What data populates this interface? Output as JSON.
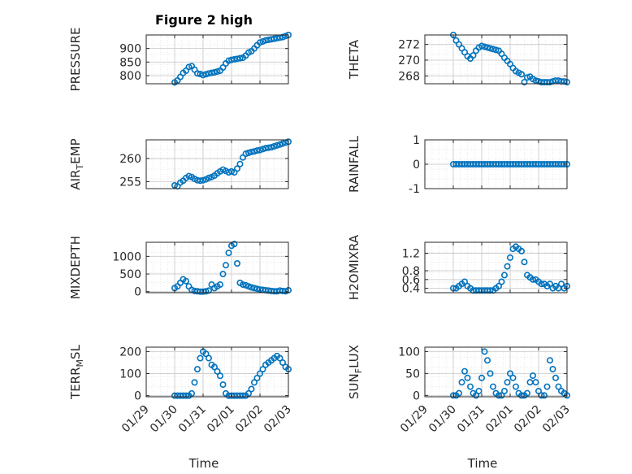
{
  "figure": {
    "title": "Figure 2 high",
    "xlabel": "Time"
  },
  "colors": {
    "marker": "#0072bd",
    "axis": "#262626",
    "grid": "#d0d0d0",
    "background": "#ffffff"
  },
  "chart_data": [
    {
      "type": "scatter",
      "id": "pressure",
      "title": "Figure 2 high",
      "ylabel": "PRESSURE",
      "xlim": [
        0,
        5
      ],
      "ylim": [
        770,
        950
      ],
      "yticks": [
        800,
        850,
        900
      ],
      "xticklabels": [],
      "xlabel": "",
      "x": [
        1.0,
        1.1,
        1.2,
        1.3,
        1.4,
        1.5,
        1.6,
        1.7,
        1.8,
        1.9,
        2.0,
        2.1,
        2.2,
        2.3,
        2.4,
        2.5,
        2.6,
        2.7,
        2.8,
        2.9,
        3.0,
        3.1,
        3.2,
        3.3,
        3.4,
        3.5,
        3.6,
        3.7,
        3.8,
        3.9,
        4.0,
        4.1,
        4.2,
        4.3,
        4.4,
        4.5,
        4.6,
        4.7,
        4.8,
        4.9,
        5.0
      ],
      "y": [
        775,
        782,
        795,
        810,
        818,
        832,
        835,
        822,
        808,
        806,
        802,
        805,
        808,
        810,
        812,
        815,
        818,
        830,
        845,
        855,
        858,
        860,
        862,
        864,
        866,
        874,
        885,
        890,
        900,
        912,
        922,
        926,
        930,
        932,
        934,
        936,
        938,
        940,
        942,
        946,
        950
      ]
    },
    {
      "type": "scatter",
      "id": "theta",
      "ylabel": "THETA",
      "xlim": [
        0,
        5
      ],
      "ylim": [
        267,
        273.2
      ],
      "yticks": [
        268,
        270,
        272
      ],
      "xticklabels": [],
      "xlabel": "",
      "x": [
        1.0,
        1.1,
        1.2,
        1.3,
        1.4,
        1.5,
        1.6,
        1.7,
        1.8,
        1.9,
        2.0,
        2.1,
        2.2,
        2.3,
        2.4,
        2.5,
        2.6,
        2.7,
        2.8,
        2.9,
        3.0,
        3.1,
        3.2,
        3.3,
        3.4,
        3.5,
        3.6,
        3.7,
        3.8,
        3.9,
        4.0,
        4.1,
        4.2,
        4.3,
        4.4,
        4.5,
        4.6,
        4.7,
        4.8,
        4.9,
        5.0
      ],
      "y": [
        273.2,
        272.5,
        272.0,
        271.5,
        271.0,
        270.5,
        270.2,
        270.6,
        271.2,
        271.6,
        271.8,
        271.7,
        271.6,
        271.5,
        271.4,
        271.3,
        271.2,
        270.8,
        270.3,
        269.9,
        269.5,
        269.0,
        268.6,
        268.4,
        268.2,
        267.2,
        267.8,
        267.9,
        267.6,
        267.4,
        267.3,
        267.2,
        267.2,
        267.2,
        267.2,
        267.3,
        267.4,
        267.4,
        267.3,
        267.3,
        267.2
      ]
    },
    {
      "type": "scatter",
      "id": "air_temp",
      "ylabel": "AIR_TEMP",
      "xlim": [
        0,
        5
      ],
      "ylim": [
        253.5,
        264
      ],
      "yticks": [
        255,
        260
      ],
      "xticklabels": [],
      "xlabel": "",
      "x": [
        1.0,
        1.1,
        1.2,
        1.3,
        1.4,
        1.5,
        1.6,
        1.7,
        1.8,
        1.9,
        2.0,
        2.1,
        2.2,
        2.3,
        2.4,
        2.5,
        2.6,
        2.7,
        2.8,
        2.9,
        3.0,
        3.1,
        3.2,
        3.3,
        3.4,
        3.5,
        3.6,
        3.7,
        3.8,
        3.9,
        4.0,
        4.1,
        4.2,
        4.3,
        4.4,
        4.5,
        4.6,
        4.7,
        4.8,
        4.9,
        5.0
      ],
      "y": [
        254.2,
        254.0,
        254.8,
        255.2,
        255.8,
        256.2,
        256.0,
        255.6,
        255.3,
        255.2,
        255.3,
        255.5,
        255.8,
        256.0,
        256.3,
        256.8,
        257.2,
        257.6,
        257.3,
        257.0,
        257.2,
        257.0,
        257.8,
        258.8,
        260.2,
        261.0,
        261.2,
        261.4,
        261.5,
        261.7,
        261.8,
        262.0,
        262.2,
        262.3,
        262.4,
        262.6,
        262.8,
        263.0,
        263.2,
        263.4,
        263.6
      ]
    },
    {
      "type": "scatter",
      "id": "rainfall",
      "ylabel": "RAINFALL",
      "xlim": [
        0,
        5
      ],
      "ylim": [
        -1,
        1
      ],
      "yticks": [
        -1,
        0,
        1
      ],
      "xticklabels": [],
      "xlabel": "",
      "x": [
        1.0,
        1.1,
        1.2,
        1.3,
        1.4,
        1.5,
        1.6,
        1.7,
        1.8,
        1.9,
        2.0,
        2.1,
        2.2,
        2.3,
        2.4,
        2.5,
        2.6,
        2.7,
        2.8,
        2.9,
        3.0,
        3.1,
        3.2,
        3.3,
        3.4,
        3.5,
        3.6,
        3.7,
        3.8,
        3.9,
        4.0,
        4.1,
        4.2,
        4.3,
        4.4,
        4.5,
        4.6,
        4.7,
        4.8,
        4.9,
        5.0
      ],
      "y": [
        0,
        0,
        0,
        0,
        0,
        0,
        0,
        0,
        0,
        0,
        0,
        0,
        0,
        0,
        0,
        0,
        0,
        0,
        0,
        0,
        0,
        0,
        0,
        0,
        0,
        0,
        0,
        0,
        0,
        0,
        0,
        0,
        0,
        0,
        0,
        0,
        0,
        0,
        0,
        0,
        0
      ]
    },
    {
      "type": "scatter",
      "id": "mixdepth",
      "ylabel": "MIXDEPTH",
      "xlim": [
        0,
        5
      ],
      "ylim": [
        -30,
        1400
      ],
      "yticks": [
        0,
        500,
        1000
      ],
      "xticklabels": [],
      "xlabel": "",
      "x": [
        1.0,
        1.1,
        1.2,
        1.3,
        1.4,
        1.5,
        1.6,
        1.7,
        1.8,
        1.9,
        2.0,
        2.1,
        2.2,
        2.3,
        2.4,
        2.5,
        2.6,
        2.7,
        2.8,
        2.9,
        3.0,
        3.1,
        3.2,
        3.3,
        3.4,
        3.5,
        3.6,
        3.7,
        3.8,
        3.9,
        4.0,
        4.1,
        4.2,
        4.3,
        4.4,
        4.5,
        4.6,
        4.7,
        4.8,
        4.9,
        5.0
      ],
      "y": [
        100,
        150,
        250,
        350,
        300,
        150,
        50,
        20,
        10,
        0,
        0,
        10,
        30,
        200,
        100,
        150,
        200,
        500,
        750,
        1100,
        1300,
        1350,
        800,
        250,
        200,
        180,
        150,
        120,
        100,
        80,
        60,
        50,
        40,
        30,
        20,
        10,
        10,
        30,
        20,
        10,
        40
      ]
    },
    {
      "type": "scatter",
      "id": "h2omixra",
      "ylabel": "H2OMIXRA",
      "xlim": [
        0,
        5
      ],
      "ylim": [
        0.3,
        1.45
      ],
      "yticks": [
        0.4,
        0.6,
        0.8,
        1.2
      ],
      "xticklabels": [],
      "xlabel": "",
      "x": [
        1.0,
        1.1,
        1.2,
        1.3,
        1.4,
        1.5,
        1.6,
        1.7,
        1.8,
        1.9,
        2.0,
        2.1,
        2.2,
        2.3,
        2.4,
        2.5,
        2.6,
        2.7,
        2.8,
        2.9,
        3.0,
        3.1,
        3.2,
        3.3,
        3.4,
        3.5,
        3.6,
        3.7,
        3.8,
        3.9,
        4.0,
        4.1,
        4.2,
        4.3,
        4.4,
        4.5,
        4.6,
        4.7,
        4.8,
        4.9,
        5.0
      ],
      "y": [
        0.4,
        0.4,
        0.45,
        0.5,
        0.55,
        0.45,
        0.4,
        0.35,
        0.35,
        0.35,
        0.35,
        0.35,
        0.35,
        0.35,
        0.35,
        0.4,
        0.45,
        0.55,
        0.7,
        0.9,
        1.1,
        1.3,
        1.35,
        1.3,
        1.25,
        1.0,
        0.7,
        0.65,
        0.6,
        0.6,
        0.55,
        0.5,
        0.5,
        0.45,
        0.5,
        0.4,
        0.45,
        0.4,
        0.5,
        0.4,
        0.45
      ]
    },
    {
      "type": "scatter",
      "id": "terr_msl",
      "ylabel": "TERR_MSL",
      "xlim": [
        0,
        5
      ],
      "ylim": [
        -5,
        220
      ],
      "yticks": [
        0,
        100,
        200
      ],
      "xticklabels": [
        "01/29",
        "01/30",
        "01/31",
        "02/01",
        "02/02",
        "02/03"
      ],
      "xlabel": "Time",
      "x": [
        1.0,
        1.1,
        1.2,
        1.3,
        1.4,
        1.5,
        1.6,
        1.7,
        1.8,
        1.9,
        2.0,
        2.1,
        2.2,
        2.3,
        2.4,
        2.5,
        2.6,
        2.7,
        2.8,
        2.9,
        3.0,
        3.1,
        3.2,
        3.3,
        3.4,
        3.5,
        3.6,
        3.7,
        3.8,
        3.9,
        4.0,
        4.1,
        4.2,
        4.3,
        4.4,
        4.5,
        4.6,
        4.7,
        4.8,
        4.9,
        5.0
      ],
      "y": [
        0,
        0,
        0,
        0,
        0,
        0,
        10,
        60,
        120,
        170,
        200,
        190,
        170,
        140,
        130,
        110,
        90,
        50,
        10,
        0,
        0,
        0,
        0,
        0,
        0,
        0,
        10,
        30,
        60,
        80,
        100,
        120,
        140,
        150,
        160,
        170,
        180,
        170,
        150,
        130,
        120
      ]
    },
    {
      "type": "scatter",
      "id": "sun_flux",
      "ylabel": "SUN_FLUX",
      "xlim": [
        0,
        5
      ],
      "ylim": [
        -3,
        110
      ],
      "yticks": [
        0,
        50,
        100
      ],
      "xticklabels": [
        "01/29",
        "01/30",
        "01/31",
        "02/01",
        "02/02",
        "02/03"
      ],
      "xlabel": "Time",
      "x": [
        1.0,
        1.1,
        1.2,
        1.3,
        1.4,
        1.5,
        1.6,
        1.7,
        1.8,
        1.9,
        2.0,
        2.1,
        2.2,
        2.3,
        2.4,
        2.5,
        2.6,
        2.7,
        2.8,
        2.9,
        3.0,
        3.1,
        3.2,
        3.3,
        3.4,
        3.5,
        3.6,
        3.7,
        3.8,
        3.9,
        4.0,
        4.1,
        4.2,
        4.3,
        4.4,
        4.5,
        4.6,
        4.7,
        4.8,
        4.9,
        5.0
      ],
      "y": [
        0,
        0,
        5,
        30,
        55,
        40,
        20,
        5,
        0,
        10,
        40,
        100,
        80,
        50,
        20,
        5,
        0,
        0,
        10,
        30,
        50,
        40,
        20,
        5,
        0,
        0,
        5,
        30,
        45,
        30,
        10,
        0,
        0,
        20,
        80,
        60,
        40,
        20,
        10,
        5,
        0
      ]
    }
  ]
}
